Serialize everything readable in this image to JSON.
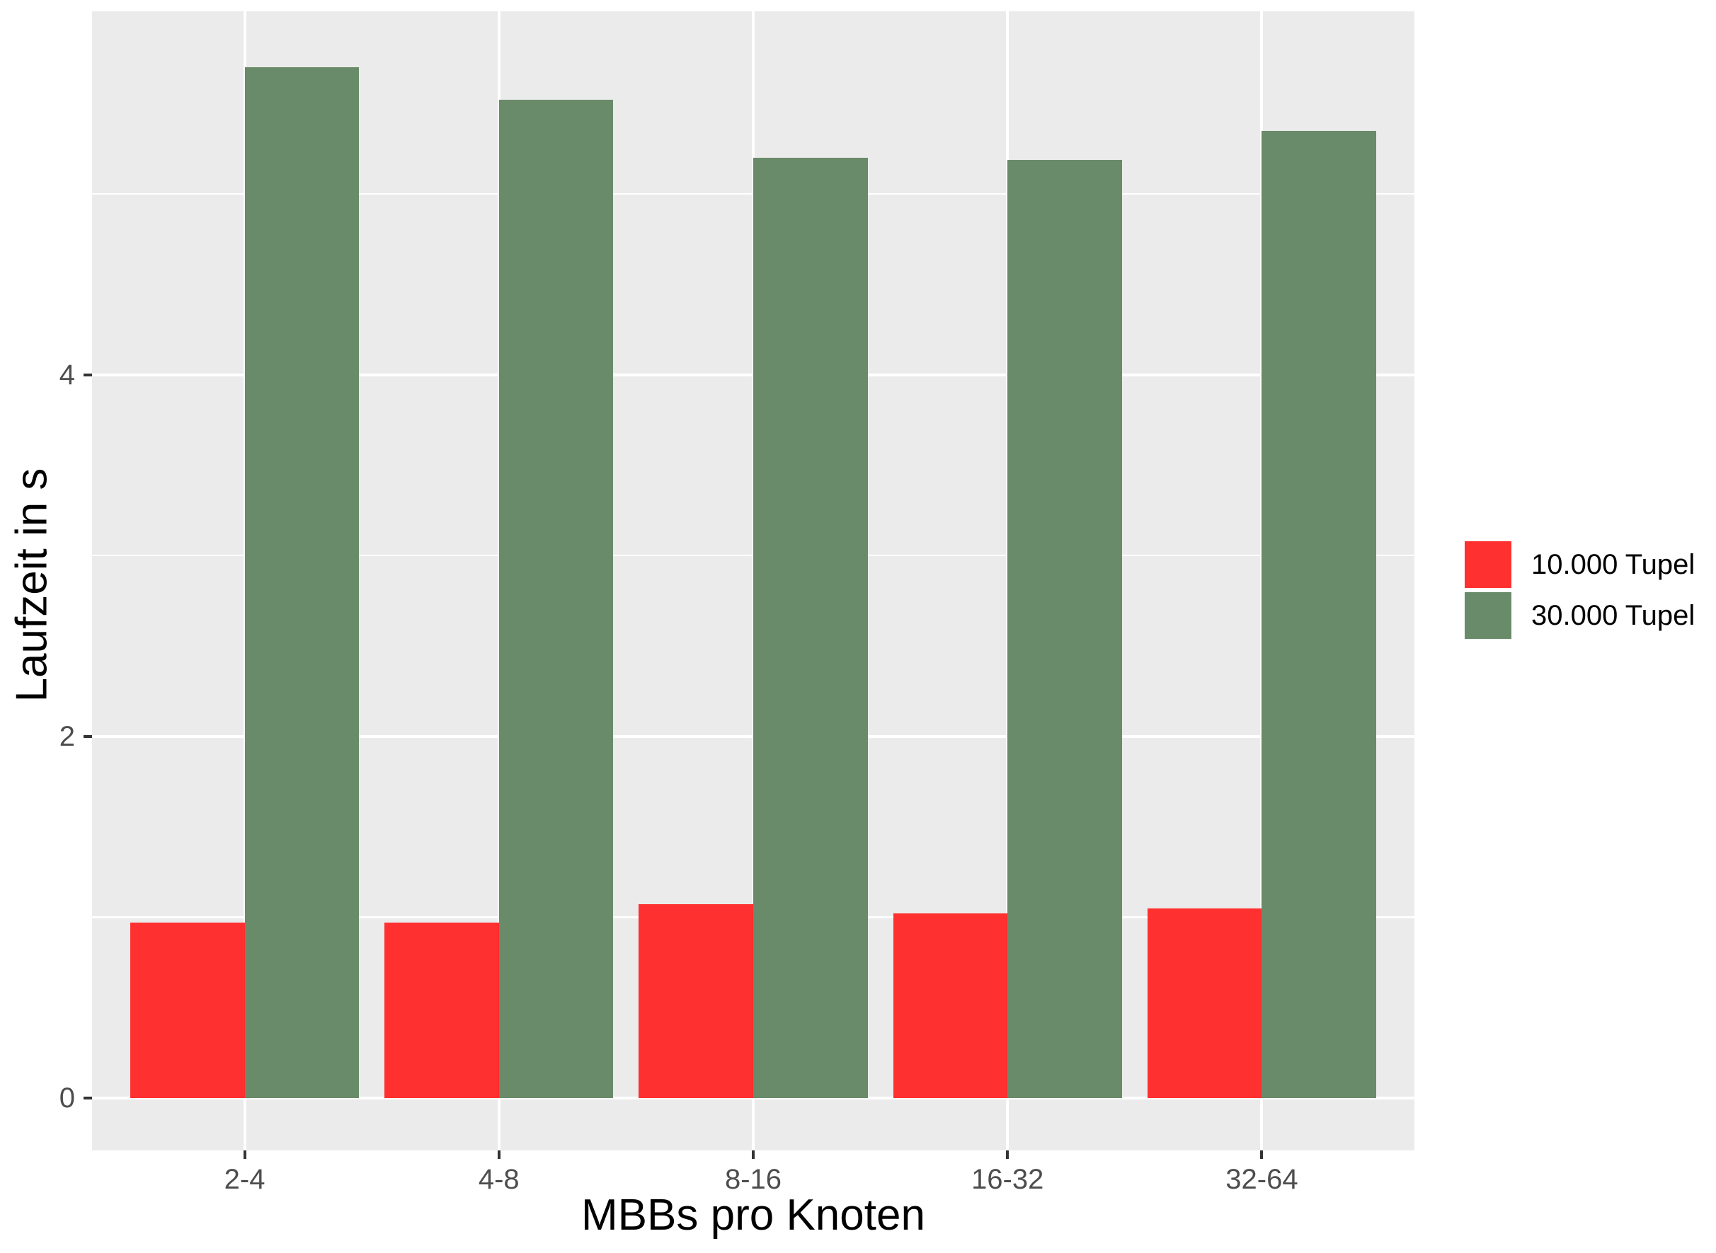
{
  "chart_data": {
    "type": "bar",
    "categories": [
      "2-4",
      "4-8",
      "8-16",
      "16-32",
      "32-64"
    ],
    "series": [
      {
        "name": "10.000 Tupel",
        "color": "#FF3030",
        "values": [
          0.97,
          0.97,
          1.07,
          1.02,
          1.05
        ]
      },
      {
        "name": "30.000 Tupel",
        "color": "#698B69",
        "values": [
          5.7,
          5.52,
          5.2,
          5.19,
          5.35
        ]
      }
    ],
    "title": "",
    "xlabel": "MBBs pro Knoten",
    "ylabel": "Laufzeit in s",
    "ylim": [
      -0.29,
      6.01
    ],
    "yticks": [
      0,
      2,
      4
    ],
    "ytick_labels": [
      "0",
      "2",
      "4"
    ],
    "yminor": [
      1,
      3,
      5
    ],
    "x_units": {
      "min": 0.4,
      "max": 5.6,
      "bar_width": 0.45
    },
    "grid": true,
    "legend_position": "right"
  },
  "colors": {
    "figure_background": "#FFFFFF",
    "panel_background": "#EBEBEB",
    "gridline": "#FFFFFF",
    "axis_text": "#4D4D4D",
    "tick_mark": "#333333",
    "title_text": "#000000"
  },
  "legend": {
    "items": [
      {
        "label": "10.000 Tupel",
        "color": "#FF3030"
      },
      {
        "label": "30.000 Tupel",
        "color": "#698B69"
      }
    ]
  }
}
